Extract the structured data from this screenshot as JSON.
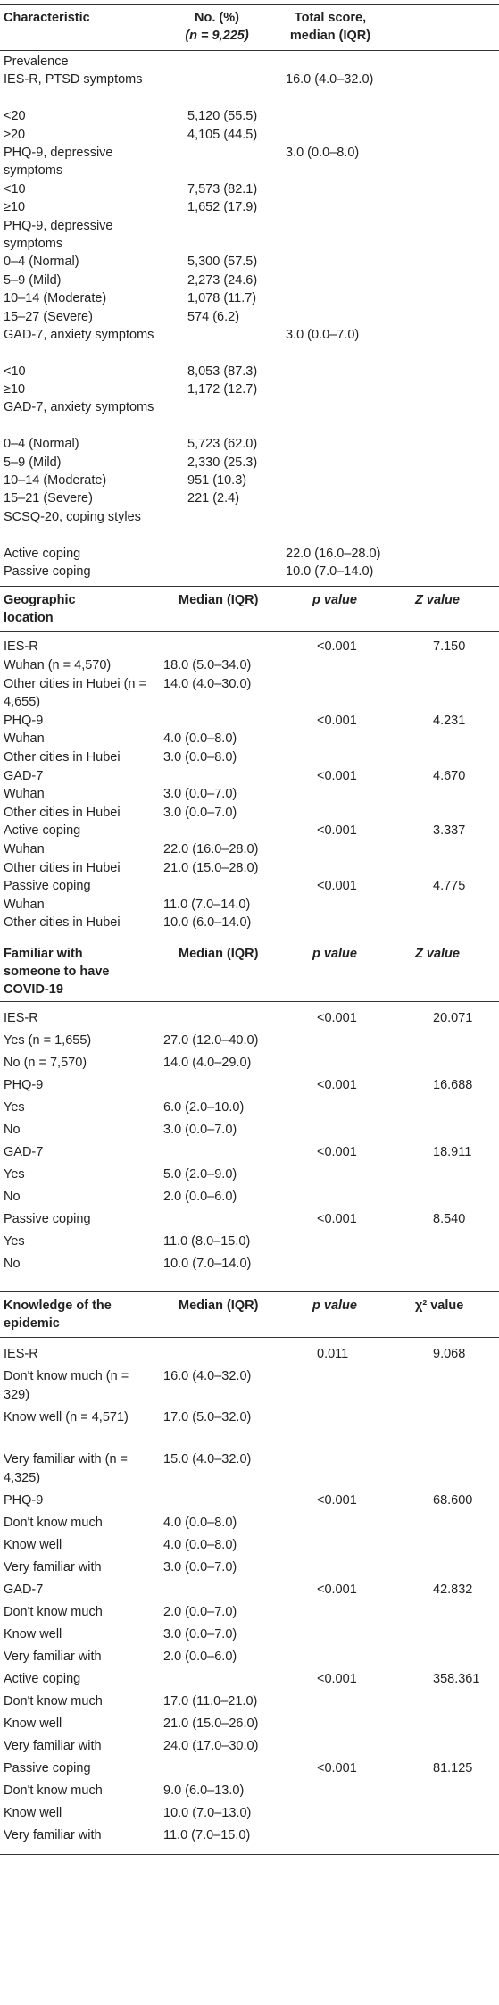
{
  "t1": {
    "header": {
      "c1": "Characteristic",
      "c2a": "No. (%)",
      "c2b": "(n = 9,225)",
      "c3a": "Total score,",
      "c3b": "median (IQR)"
    },
    "rows": [
      [
        "Prevalence",
        "",
        ""
      ],
      [
        "IES-R, PTSD symptoms",
        "",
        "16.0 (4.0–32.0)"
      ],
      [
        "<20",
        "5,120 (55.5)",
        ""
      ],
      [
        "≥20",
        "4,105 (44.5)",
        ""
      ],
      [
        "PHQ-9, depressive symptoms",
        "",
        "3.0 (0.0–8.0)"
      ],
      [
        "<10",
        "7,573 (82.1)",
        ""
      ],
      [
        "≥10",
        "1,652 (17.9)",
        ""
      ],
      [
        "PHQ-9, depressive symptoms",
        "",
        ""
      ],
      [
        "0–4 (Normal)",
        "5,300 (57.5)",
        ""
      ],
      [
        "5–9 (Mild)",
        "2,273 (24.6)",
        ""
      ],
      [
        "10–14 (Moderate)",
        "1,078 (11.7)",
        ""
      ],
      [
        "15–27 (Severe)",
        "574 (6.2)",
        ""
      ],
      [
        "GAD-7, anxiety symptoms",
        "",
        "3.0 (0.0–7.0)"
      ],
      [
        "<10",
        "8,053 (87.3)",
        ""
      ],
      [
        "≥10",
        "1,172 (12.7)",
        ""
      ],
      [
        "GAD-7, anxiety symptoms",
        "",
        ""
      ],
      [
        "0–4 (Normal)",
        "5,723 (62.0)",
        ""
      ],
      [
        "5–9 (Mild)",
        "2,330 (25.3)",
        ""
      ],
      [
        "10–14 (Moderate)",
        "951 (10.3)",
        ""
      ],
      [
        "15–21 (Severe)",
        "221 (2.4)",
        ""
      ],
      [
        "SCSQ-20, coping styles",
        "",
        ""
      ],
      [
        "Active coping",
        "",
        "22.0 (16.0–28.0)"
      ],
      [
        "Passive coping",
        "",
        "10.0 (7.0–14.0)"
      ]
    ]
  },
  "t2": {
    "header": {
      "c1a": "Geographic",
      "c1b": "location",
      "c2": "Median (IQR)",
      "c3": "p value",
      "c4": "Z value"
    },
    "rows": [
      [
        "IES-R",
        "",
        "<0.001",
        "7.150"
      ],
      [
        "Wuhan (n = 4,570)",
        "18.0 (5.0–34.0)",
        "",
        ""
      ],
      [
        "Other cities in Hubei (n = 4,655)",
        "14.0 (4.0–30.0)",
        "",
        ""
      ],
      [
        "PHQ-9",
        "",
        "<0.001",
        "4.231"
      ],
      [
        "Wuhan",
        "4.0 (0.0–8.0)",
        "",
        ""
      ],
      [
        "Other cities in Hubei",
        "3.0 (0.0–8.0)",
        "",
        ""
      ],
      [
        "GAD-7",
        "",
        "<0.001",
        "4.670"
      ],
      [
        "Wuhan",
        "3.0 (0.0–7.0)",
        "",
        ""
      ],
      [
        "Other cities in Hubei",
        "3.0 (0.0–7.0)",
        "",
        ""
      ],
      [
        "Active coping",
        "",
        "<0.001",
        "3.337"
      ],
      [
        "Wuhan",
        "22.0 (16.0–28.0)",
        "",
        ""
      ],
      [
        "Other cities in Hubei",
        "21.0 (15.0–28.0)",
        "",
        ""
      ],
      [
        "Passive coping",
        "",
        "<0.001",
        "4.775"
      ],
      [
        "Wuhan",
        "11.0 (7.0–14.0)",
        "",
        ""
      ],
      [
        "Other cities in Hubei",
        "10.0 (6.0–14.0)",
        "",
        ""
      ]
    ]
  },
  "t3": {
    "header": {
      "c1a": "Familiar with",
      "c1b": "someone to have",
      "c1c": "COVID-19",
      "c2": "Median (IQR)",
      "c3": "p value",
      "c4": "Z value"
    },
    "rows": [
      [
        "IES-R",
        "",
        "<0.001",
        "20.071"
      ],
      [
        "Yes (n = 1,655)",
        "27.0 (12.0–40.0)",
        "",
        ""
      ],
      [
        "No (n = 7,570)",
        "14.0 (4.0–29.0)",
        "",
        ""
      ],
      [
        "PHQ-9",
        "",
        "<0.001",
        "16.688"
      ],
      [
        "Yes",
        "6.0 (2.0–10.0)",
        "",
        ""
      ],
      [
        "No",
        "3.0 (0.0–7.0)",
        "",
        ""
      ],
      [
        "GAD-7",
        "",
        "<0.001",
        "18.911"
      ],
      [
        "Yes",
        "5.0 (2.0–9.0)",
        "",
        ""
      ],
      [
        "No",
        "2.0 (0.0–6.0)",
        "",
        ""
      ],
      [
        "Passive coping",
        "",
        "<0.001",
        "8.540"
      ],
      [
        "Yes",
        "11.0 (8.0–15.0)",
        "",
        ""
      ],
      [
        "No",
        "10.0 (7.0–14.0)",
        "",
        ""
      ]
    ]
  },
  "t4": {
    "header": {
      "c1a": "Knowledge of the",
      "c1b": "epidemic",
      "c2": "Median (IQR)",
      "c3": "p value",
      "c4": "χ² value"
    },
    "rows": [
      [
        "IES-R",
        "",
        "0.011",
        "9.068"
      ],
      [
        "Don't know much (n = 329)",
        "16.0 (4.0–32.0)",
        "",
        ""
      ],
      [
        "Know well (n = 4,571)",
        "17.0 (5.0–32.0)",
        "",
        ""
      ],
      [
        "Very familiar with (n = 4,325)",
        "15.0 (4.0–32.0)",
        "",
        ""
      ],
      [
        "PHQ-9",
        "",
        "<0.001",
        "68.600"
      ],
      [
        "Don't know much",
        "4.0 (0.0–8.0)",
        "",
        ""
      ],
      [
        "Know well",
        "4.0 (0.0–8.0)",
        "",
        ""
      ],
      [
        "Very familiar with",
        "3.0 (0.0–7.0)",
        "",
        ""
      ],
      [
        "GAD-7",
        "",
        "<0.001",
        "42.832"
      ],
      [
        "Don't know much",
        "2.0 (0.0–7.0)",
        "",
        ""
      ],
      [
        "Know well",
        "3.0 (0.0–7.0)",
        "",
        ""
      ],
      [
        "Very familiar with",
        "2.0 (0.0–6.0)",
        "",
        ""
      ],
      [
        "Active coping",
        "",
        "<0.001",
        "358.361"
      ],
      [
        "Don't know much",
        "17.0 (11.0–21.0)",
        "",
        ""
      ],
      [
        "Know well",
        "21.0 (15.0–26.0)",
        "",
        ""
      ],
      [
        "Very familiar with",
        "24.0 (17.0–30.0)",
        "",
        ""
      ],
      [
        "Passive coping",
        "",
        "<0.001",
        "81.125"
      ],
      [
        "Don't know much",
        "9.0 (6.0–13.0)",
        "",
        ""
      ],
      [
        "Know well",
        "10.0 (7.0–13.0)",
        "",
        ""
      ],
      [
        "Very familiar with",
        "11.0 (7.0–15.0)",
        "",
        ""
      ]
    ]
  }
}
